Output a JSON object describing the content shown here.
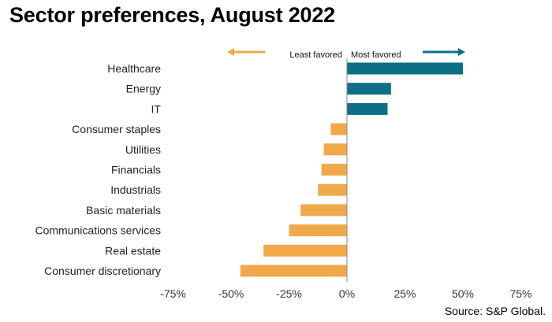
{
  "title": "Sector preferences, August 2022",
  "source": "Source: S&P Global.",
  "legend": {
    "left_label": "Least favored",
    "right_label": "Most favored",
    "left_color": "#F0A94A",
    "right_color": "#0D6F86"
  },
  "colors": {
    "positive": "#0D6F86",
    "negative": "#F0A94A",
    "zero_line": "#888888"
  },
  "chart_data": {
    "type": "bar",
    "orientation": "horizontal",
    "title": "Sector preferences, August 2022",
    "categories": [
      "Healthcare",
      "Energy",
      "IT",
      "Consumer staples",
      "Utilities",
      "Financials",
      "Industrials",
      "Basic materials",
      "Communications services",
      "Real estate",
      "Consumer discretionary"
    ],
    "values": [
      50,
      19,
      17.5,
      -7,
      -10,
      -11,
      -12.5,
      -20,
      -25,
      -36,
      -46
    ],
    "xlim": [
      -75,
      75
    ],
    "xticks": [
      -75,
      -50,
      -25,
      0,
      25,
      50,
      75
    ],
    "xtick_labels": [
      "-75%",
      "-50%",
      "-25%",
      "0%",
      "25%",
      "50%",
      "75%"
    ],
    "grid": false
  }
}
